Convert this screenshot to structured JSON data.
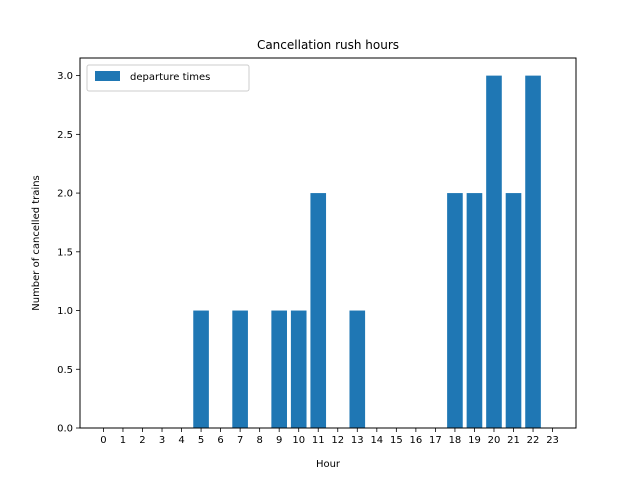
{
  "chart_data": {
    "type": "bar",
    "title": "Cancellation rush hours",
    "xlabel": "Hour",
    "ylabel": "Number of cancelled trains",
    "categories": [
      "0",
      "1",
      "2",
      "3",
      "4",
      "5",
      "6",
      "7",
      "8",
      "9",
      "10",
      "11",
      "12",
      "13",
      "14",
      "15",
      "16",
      "17",
      "18",
      "19",
      "20",
      "21",
      "22",
      "23"
    ],
    "series": [
      {
        "name": "departure times",
        "values": [
          0,
          0,
          0,
          0,
          0,
          1,
          0,
          1,
          0,
          1,
          1,
          2,
          0,
          1,
          0,
          0,
          0,
          0,
          2,
          2,
          3,
          2,
          3,
          0
        ]
      }
    ],
    "ylim": [
      0,
      3.15
    ],
    "yticks": [
      "0.0",
      "0.5",
      "1.0",
      "1.5",
      "2.0",
      "2.5",
      "3.0"
    ],
    "legend": "upper left",
    "grid": false,
    "colors": {
      "bar": "#1f77b4",
      "axis": "#000000",
      "background": "#ffffff"
    }
  }
}
